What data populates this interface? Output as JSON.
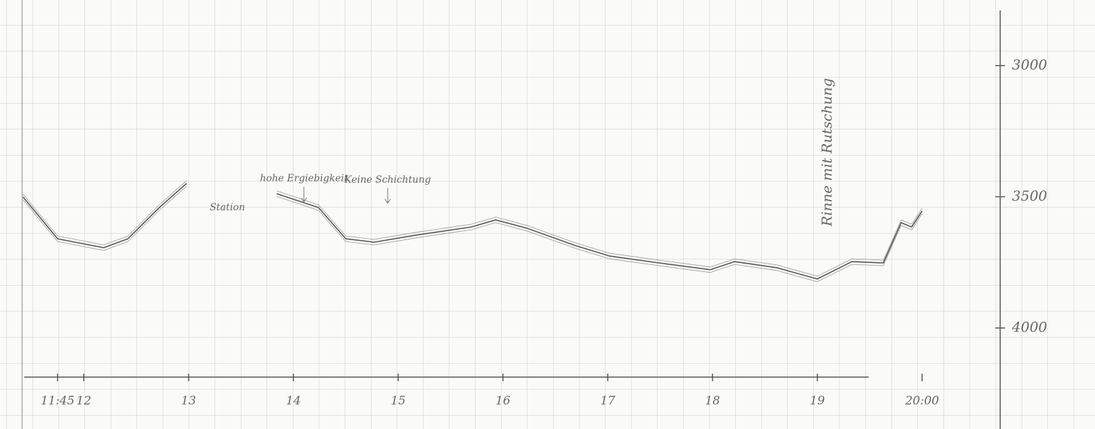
{
  "chart_data": {
    "type": "line",
    "x": [
      11.42,
      11.75,
      12.19,
      12.42,
      12.72,
      12.98,
      null,
      13.84,
      14.24,
      14.5,
      14.77,
      15.17,
      15.7,
      15.93,
      16.23,
      16.69,
      17.02,
      17.49,
      17.98,
      18.21,
      18.61,
      19.0,
      19.33,
      19.63,
      19.8,
      19.9,
      20.0
    ],
    "values": [
      3501,
      3660,
      3694,
      3660,
      3541,
      3449,
      null,
      3488,
      3541,
      3660,
      3673,
      3646,
      3615,
      3588,
      3620,
      3686,
      3726,
      3752,
      3778,
      3747,
      3770,
      3813,
      3747,
      3752,
      3599,
      3615,
      3554
    ],
    "color": "#555555",
    "xlim": [
      11.2,
      21.65
    ],
    "xticks": [
      {
        "value": 11.75,
        "label": "11:45"
      },
      12,
      13,
      14,
      15,
      16,
      17,
      18,
      19,
      {
        "value": 20,
        "label": "20:00"
      }
    ],
    "ylim": [
      2750,
      4385
    ],
    "yticks": [
      3000,
      3500,
      4000
    ],
    "y_reversed": true,
    "annotations": [
      {
        "text": "Station",
        "x": 13.37,
        "y": 3541
      },
      {
        "text": "hohe Ergiebigkeit",
        "x": 14.1,
        "y": 3430
      },
      {
        "text": "Keine Schichtung",
        "x": 14.9,
        "y": 3435
      },
      {
        "text": "Rinne mit Rutschung",
        "x": 19.1,
        "y": 3330
      }
    ]
  }
}
